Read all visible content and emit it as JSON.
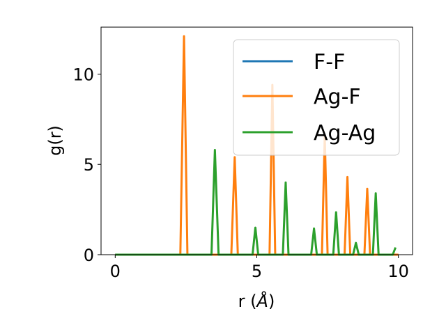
{
  "chart_data": {
    "type": "line",
    "xlabel_text": "r (",
    "xlabel_unit": "Å",
    "xlabel_close": ")",
    "ylabel": "g(r)",
    "xlim": [
      -0.5,
      10.5
    ],
    "ylim": [
      0,
      12.6
    ],
    "xticks": [
      0,
      5,
      10
    ],
    "xtick_labels": [
      "0",
      "5",
      "10"
    ],
    "yticks": [
      0,
      5,
      10
    ],
    "ytick_labels": [
      "0",
      "5",
      "10"
    ],
    "grid": false,
    "legend_position": "top-right",
    "series": [
      {
        "name": "F-F",
        "color": "#1f77b4",
        "x": [
          0,
          2.2,
          10
        ],
        "y": [
          0,
          0,
          0
        ]
      },
      {
        "name": "Ag-F",
        "color": "#ff7f0e",
        "x": [
          0,
          2.3,
          2.43,
          2.55,
          4.1,
          4.22,
          4.33,
          5.45,
          5.55,
          5.65,
          7.3,
          7.4,
          7.5,
          8.1,
          8.2,
          8.3,
          8.8,
          8.9,
          9.0,
          10
        ],
        "y": [
          0,
          0,
          12.1,
          0,
          0,
          5.4,
          0,
          0,
          9.4,
          0,
          0,
          6.6,
          0,
          0,
          4.3,
          0,
          0,
          3.65,
          0,
          0
        ]
      },
      {
        "name": "Ag-Ag",
        "color": "#2ca02c",
        "x": [
          0,
          3.4,
          3.52,
          3.65,
          4.85,
          4.95,
          5.05,
          5.92,
          6.02,
          6.12,
          6.92,
          7.02,
          7.12,
          7.7,
          7.8,
          7.9,
          8.4,
          8.5,
          8.6,
          9.1,
          9.2,
          9.3,
          9.8,
          9.9
        ],
        "y": [
          0,
          0,
          5.8,
          0,
          0,
          1.5,
          0,
          0,
          4.0,
          0,
          0,
          1.45,
          0,
          0,
          2.35,
          0,
          0,
          0.65,
          0,
          0,
          3.4,
          0,
          0,
          0.4
        ]
      }
    ]
  }
}
